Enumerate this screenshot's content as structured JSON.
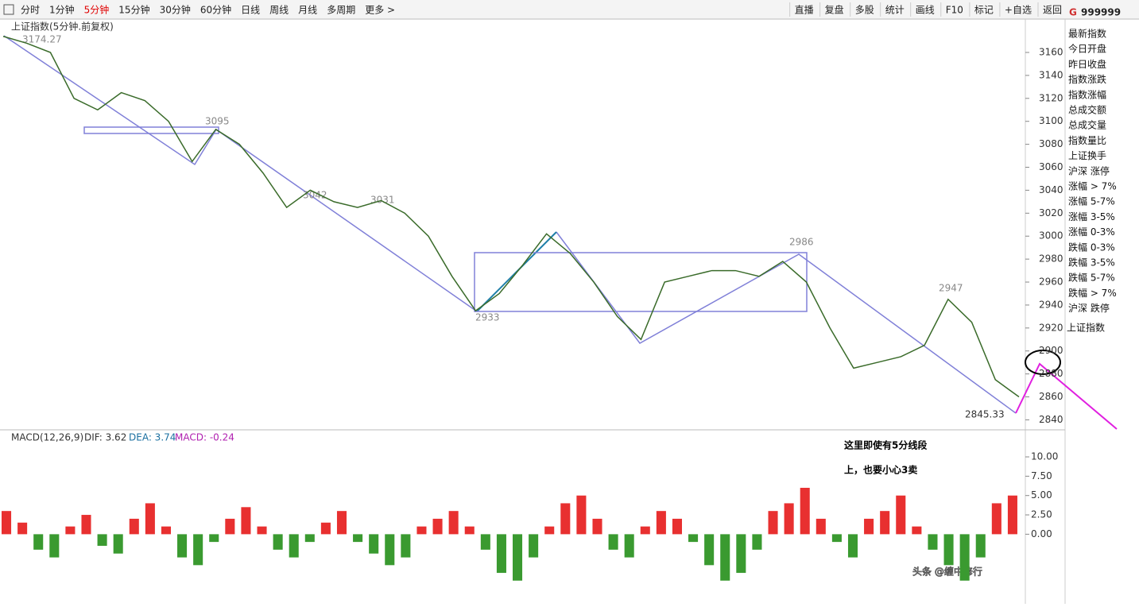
{
  "toolbar": {
    "periods": [
      "分时",
      "1分钟",
      "5分钟",
      "15分钟",
      "30分钟",
      "60分钟",
      "日线",
      "周线",
      "月线",
      "多周期",
      "更多 >"
    ],
    "active": 2,
    "tools": [
      "直播",
      "复盘",
      "多股",
      "统计",
      "画线",
      "F10",
      "标记",
      "+自选",
      "返回"
    ]
  },
  "panel": {
    "mark": "G",
    "code": "999999",
    "items": [
      "最新指数",
      "今日开盘",
      "昨日收盘",
      "指数涨跌",
      "指数涨幅",
      "总成交额",
      "总成交量",
      "指数量比",
      "上证换手",
      "沪深 涨停",
      "涨幅 > 7%",
      "涨幅 5-7%",
      "涨幅 3-5%",
      "涨幅 0-3%",
      "跌幅 0-3%",
      "跌幅 3-5%",
      "跌幅 5-7%",
      "跌幅 > 7%",
      "沪深 跌停"
    ],
    "footer": "上证指数"
  },
  "chart": {
    "title": "上证指数(5分钟.前复权)",
    "price": {
      "ylim": [
        2832,
        3178
      ],
      "yticks": [
        2840,
        2860,
        2880,
        2900,
        2920,
        2940,
        2960,
        2980,
        3000,
        3020,
        3040,
        3060,
        3080,
        3100,
        3120,
        3140,
        3160
      ],
      "values": [
        3174,
        3168,
        3160,
        3120,
        3110,
        3125,
        3118,
        3100,
        3065,
        3093,
        3080,
        3055,
        3025,
        3040,
        3030,
        3025,
        3031,
        3020,
        3000,
        2965,
        2935,
        2950,
        2975,
        3002,
        2985,
        2960,
        2930,
        2910,
        2960,
        2965,
        2970,
        2970,
        2965,
        2978,
        2960,
        2920,
        2885,
        2890,
        2895,
        2905,
        2945,
        2925,
        2875,
        2860
      ]
    },
    "labels": [
      "3174.27",
      "3095",
      "3042",
      "3031",
      "2933",
      "2986",
      "2947",
      "2845.33"
    ],
    "macd": {
      "title": "MACD(12,26,9)",
      "dif": "DIF: 3.62",
      "dea": "DEA: 3.74",
      "macd": "MACD: -0.24",
      "ylim": [
        -9,
        11.75
      ],
      "yticks": [
        {
          "value": 0,
          "label": "0.00"
        },
        {
          "value": 2.5,
          "label": "2.50"
        },
        {
          "value": 5,
          "label": "5.00"
        },
        {
          "value": 7.5,
          "label": "7.50"
        },
        {
          "value": 10,
          "label": "10.00"
        }
      ],
      "values": [
        3,
        1.5,
        -2,
        -3,
        1,
        2.5,
        -1.5,
        -2.5,
        2,
        4,
        1,
        -3,
        -4,
        -1,
        2,
        3.5,
        1,
        -2,
        -3,
        -1,
        1.5,
        3,
        -1,
        -2.5,
        -4,
        -3,
        1,
        2,
        3,
        1,
        -2,
        -5,
        -6,
        -3,
        1,
        4,
        5,
        2,
        -2,
        -3,
        1,
        3,
        2,
        -1,
        -4,
        -6,
        -5,
        -2,
        3,
        4,
        6,
        2,
        -1,
        -3,
        2,
        3,
        5,
        1,
        -2,
        -4,
        -6,
        -3,
        4,
        5
      ]
    }
  },
  "note": [
    "这里即使有5分线段",
    "上，也要小心3卖"
  ],
  "watermark": "头条 @缠中修行"
}
